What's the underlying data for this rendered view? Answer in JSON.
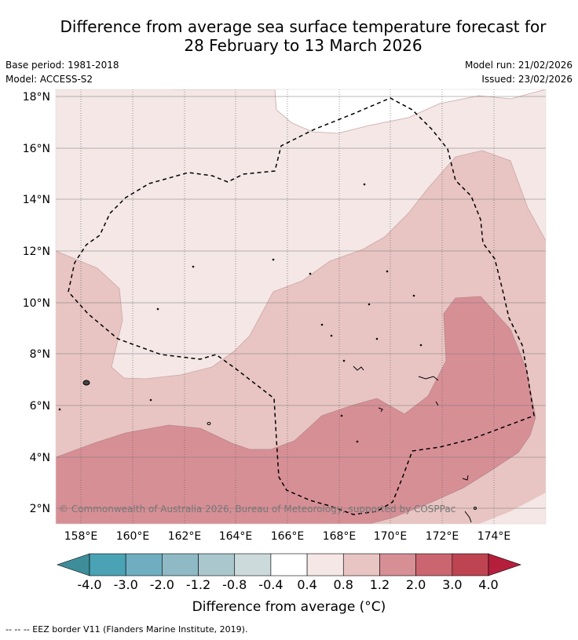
{
  "title_line1": "Difference from average sea surface temperature forecast for",
  "title_line2": "28 February to 13 March 2026",
  "meta": {
    "base_period": "Base period: 1981-2018",
    "model": "Model: ACCESS-S2",
    "model_run": "Model run: 21/02/2026",
    "issued": "Issued: 23/02/2026"
  },
  "map": {
    "lat_labels": [
      "18°N",
      "16°N",
      "14°N",
      "12°N",
      "10°N",
      "8°N",
      "6°N",
      "4°N",
      "2°N"
    ],
    "lon_labels": [
      "158°E",
      "160°E",
      "162°E",
      "164°E",
      "166°E",
      "168°E",
      "170°E",
      "172°E",
      "174°E"
    ],
    "copyright": "© Commonwealth of Australia 2026, Bureau of Meteorology, supported by COSPPac"
  },
  "colorbar": {
    "ticks": [
      "-4.0",
      "-3.0",
      "-2.0",
      "-1.2",
      "-0.8",
      "-0.4",
      "0.4",
      "0.8",
      "1.2",
      "2.0",
      "3.0",
      "4.0"
    ],
    "colors": [
      "#4aa3b5",
      "#6eaec0",
      "#8fbac5",
      "#a9c7cc",
      "#ccdadc",
      "#ffffff",
      "#f4e7e6",
      "#e8c5c2",
      "#d78f96",
      "#cb6670",
      "#be4452"
    ],
    "under_color": "#3e8d9a",
    "over_color": "#b51f3c",
    "label": "Difference from average (°C)"
  },
  "legend": {
    "eez": "--  --  -- EEZ border V11 (Flanders Marine Institute, 2019)."
  }
}
